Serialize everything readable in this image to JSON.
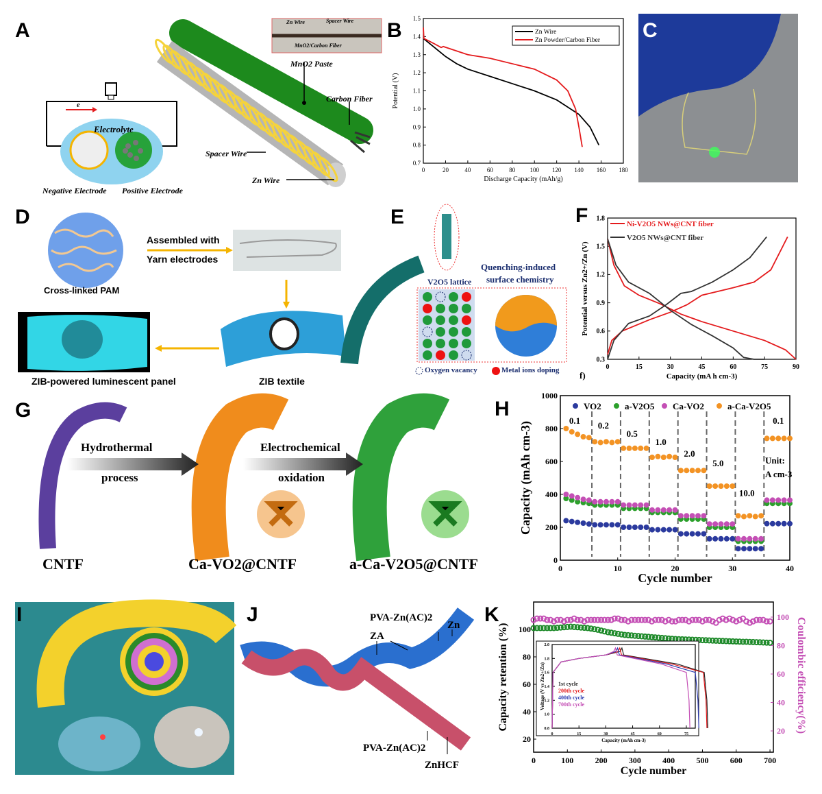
{
  "panels": {
    "A": "A",
    "B": "B",
    "C": "C",
    "D": "D",
    "E": "E",
    "F": "F",
    "G": "G",
    "H": "H",
    "I": "I",
    "J": "J",
    "K": "K"
  },
  "panelA": {
    "electrolyte": "Electrolyte",
    "electron": "e",
    "negative": "Negative Electrode",
    "positive": "Positive Electrode",
    "mno2": "MnO2 Paste",
    "carbon_fiber": "Carbon Fiber",
    "spacer_wire": "Spacer Wire",
    "zn_wire": "Zn Wire",
    "inset_zn": "Zn Wire",
    "inset_spacer": "Spacer Wire",
    "inset_mno2": "MnO2/Carbon Fiber"
  },
  "panelD": {
    "pam": "Cross-linked PAM",
    "assembled1": "Assembled with",
    "assembled2": "Yarn electrodes",
    "textile": "ZIB textile",
    "panel": "ZIB-powered luminescent panel"
  },
  "panelE": {
    "lattice": "V2O5 lattice",
    "quench1": "Quenching-induced",
    "quench2": "surface chemistry",
    "vacancy": "Oxygen vacancy",
    "doping": "Metal ions doping"
  },
  "panelG": {
    "step1a": "Hydrothermal",
    "step1b": "process",
    "step2a": "Electrochemical",
    "step2b": "oxidation",
    "cntf": "CNTF",
    "ca_vo2": "Ca-VO2@CNTF",
    "a_ca_v2o5": "a-Ca-V2O5@CNTF"
  },
  "panelJ": {
    "pva_top": "PVA-Zn(AC)2",
    "zn": "Zn",
    "za": "ZA",
    "pva_bottom": "PVA-Zn(AC)2",
    "znhcf": "ZnHCF"
  },
  "chart_data": [
    {
      "id": "B",
      "type": "line",
      "xlabel": "Discharge Capacity (mAh/g)",
      "ylabel": "Potential (V)",
      "xlim": [
        0,
        180
      ],
      "ylim": [
        0.7,
        1.5
      ],
      "xticks": [
        "0",
        "20",
        "40",
        "60",
        "80",
        "100",
        "120",
        "140",
        "160",
        "180"
      ],
      "yticks": [
        "0.7",
        "0.8",
        "0.9",
        "1.0",
        "1.1",
        "1.2",
        "1.3",
        "1.4",
        "1.5"
      ],
      "legend": "top-right",
      "series": [
        {
          "name": "Zn Wire",
          "color": "#000000",
          "points": [
            [
              0,
              1.39
            ],
            [
              10,
              1.34
            ],
            [
              20,
              1.29
            ],
            [
              30,
              1.25
            ],
            [
              40,
              1.22
            ],
            [
              60,
              1.18
            ],
            [
              80,
              1.14
            ],
            [
              100,
              1.1
            ],
            [
              120,
              1.05
            ],
            [
              140,
              0.97
            ],
            [
              150,
              0.9
            ],
            [
              158,
              0.8
            ]
          ]
        },
        {
          "name": "Zn Powder/Carbon Fiber",
          "color": "#e41a1c",
          "points": [
            [
              0,
              1.45
            ],
            [
              0.5,
              1.39
            ],
            [
              10,
              1.36
            ],
            [
              16,
              1.34
            ],
            [
              18,
              1.345
            ],
            [
              40,
              1.3
            ],
            [
              60,
              1.28
            ],
            [
              80,
              1.25
            ],
            [
              100,
              1.22
            ],
            [
              120,
              1.16
            ],
            [
              130,
              1.1
            ],
            [
              137,
              1.0
            ],
            [
              140,
              0.9
            ],
            [
              143,
              0.79
            ]
          ]
        }
      ]
    },
    {
      "id": "F",
      "type": "line",
      "xlabel": "Capacity (mA h cm-3)",
      "ylabel": "Potential versus Zn2+/Zn (V)",
      "xlim": [
        0,
        90
      ],
      "ylim": [
        0.3,
        1.8
      ],
      "sublabel": "f)",
      "xticks": [
        "0",
        "15",
        "30",
        "45",
        "60",
        "75",
        "90"
      ],
      "yticks": [
        "0.3",
        "0.6",
        "0.9",
        "1.2",
        "1.5",
        "1.8"
      ],
      "legend": "top-left",
      "series": [
        {
          "name": "Ni-V2O5 NWs@CNT fiber",
          "color": "#e41a1c",
          "points": [
            [
              0,
              0.35
            ],
            [
              2,
              0.5
            ],
            [
              7,
              0.6
            ],
            [
              20,
              0.72
            ],
            [
              30,
              0.8
            ],
            [
              38,
              0.88
            ],
            [
              45,
              0.98
            ],
            [
              60,
              1.06
            ],
            [
              70,
              1.12
            ],
            [
              78,
              1.25
            ],
            [
              86,
              1.6
            ]
          ],
          "discharge": [
            [
              0,
              1.58
            ],
            [
              3,
              1.3
            ],
            [
              8,
              1.08
            ],
            [
              15,
              0.98
            ],
            [
              25,
              0.89
            ],
            [
              35,
              0.78
            ],
            [
              45,
              0.7
            ],
            [
              60,
              0.6
            ],
            [
              75,
              0.5
            ],
            [
              85,
              0.4
            ],
            [
              90,
              0.3
            ]
          ]
        },
        {
          "name": "V2O5 NWs@CNT fiber",
          "color": "#333333",
          "points": [
            [
              0,
              0.3
            ],
            [
              3,
              0.5
            ],
            [
              10,
              0.68
            ],
            [
              20,
              0.76
            ],
            [
              28,
              0.88
            ],
            [
              35,
              1.0
            ],
            [
              40,
              1.02
            ],
            [
              50,
              1.12
            ],
            [
              60,
              1.25
            ],
            [
              68,
              1.38
            ],
            [
              76,
              1.6
            ]
          ],
          "discharge": [
            [
              0,
              1.58
            ],
            [
              4,
              1.3
            ],
            [
              10,
              1.12
            ],
            [
              20,
              1.0
            ],
            [
              30,
              0.82
            ],
            [
              40,
              0.67
            ],
            [
              50,
              0.55
            ],
            [
              60,
              0.42
            ],
            [
              65,
              0.32
            ],
            [
              70,
              0.3
            ],
            [
              75,
              0.3
            ]
          ]
        }
      ]
    },
    {
      "id": "H",
      "type": "scatter",
      "xlabel": "Cycle number",
      "ylabel": "Capacity (mAh cm-3)",
      "xlim": [
        0,
        40
      ],
      "ylim": [
        0,
        1000
      ],
      "xticks": [
        "0",
        "10",
        "20",
        "30",
        "40"
      ],
      "yticks": [
        "0",
        "200",
        "400",
        "600",
        "800",
        "1000"
      ],
      "legend": "top",
      "rates": [
        "0.1",
        "0.2",
        "0.5",
        "1.0",
        "2.0",
        "5.0",
        "10.0",
        "0.1"
      ],
      "unit1": "Unit:",
      "unit2": "A cm-3",
      "series": [
        {
          "name": "VO2",
          "color": "#2b3a9e",
          "values": [
            240,
            235,
            230,
            225,
            220,
            215,
            215,
            215,
            215,
            215,
            200,
            200,
            200,
            200,
            200,
            185,
            185,
            185,
            185,
            185,
            160,
            160,
            160,
            160,
            160,
            130,
            130,
            130,
            130,
            130,
            70,
            70,
            70,
            70,
            70,
            222,
            222,
            222,
            222,
            222
          ]
        },
        {
          "name": "a-V2O5",
          "color": "#2ca02c",
          "values": [
            375,
            365,
            355,
            350,
            345,
            335,
            335,
            335,
            335,
            335,
            315,
            315,
            315,
            315,
            315,
            290,
            290,
            290,
            290,
            290,
            250,
            250,
            250,
            250,
            250,
            200,
            200,
            200,
            200,
            200,
            115,
            115,
            115,
            115,
            115,
            345,
            345,
            345,
            345,
            345
          ]
        },
        {
          "name": "Ca-VO2",
          "color": "#c44fb5",
          "values": [
            400,
            390,
            380,
            370,
            365,
            355,
            355,
            355,
            355,
            355,
            335,
            335,
            335,
            335,
            335,
            305,
            305,
            305,
            305,
            305,
            270,
            270,
            270,
            270,
            270,
            220,
            220,
            220,
            220,
            220,
            130,
            130,
            130,
            130,
            130,
            365,
            365,
            365,
            365,
            365
          ]
        },
        {
          "name": "a-Ca-V2O5",
          "color": "#f39324",
          "values": [
            800,
            780,
            765,
            750,
            745,
            720,
            715,
            720,
            715,
            720,
            680,
            680,
            680,
            680,
            680,
            625,
            630,
            625,
            630,
            625,
            545,
            545,
            545,
            545,
            545,
            450,
            450,
            450,
            450,
            450,
            270,
            265,
            270,
            265,
            270,
            740,
            740,
            740,
            740,
            740
          ]
        }
      ]
    },
    {
      "id": "K",
      "type": "scatter",
      "xlabel": "Cycle number",
      "ylabel": "Capacity retention (%)",
      "y2label": "Coulombic efficiency(%)",
      "xlim": [
        0,
        700
      ],
      "ylim": [
        10,
        115
      ],
      "xticks": [
        "0",
        "100",
        "200",
        "300",
        "400",
        "500",
        "600",
        "700"
      ],
      "yticks": [
        "20",
        "40",
        "60",
        "80",
        "100"
      ],
      "y2ticks": [
        "20",
        "40",
        "60",
        "80",
        "100"
      ],
      "series": [
        {
          "name": "Capacity retention",
          "color": "#1e8a2a",
          "values": [
            100,
            100,
            100,
            100,
            100,
            100,
            100,
            100.2,
            100.4,
            100.6,
            100.8,
            101,
            100.8,
            100.6,
            100.4,
            100.2,
            100,
            99.6,
            99.2,
            98.8,
            98.2,
            97.6,
            97,
            96.6,
            96.2,
            95.8,
            95.4,
            95,
            94.8,
            94.6,
            94.4,
            94.2,
            94,
            93.8,
            93.6,
            93.4,
            93.2,
            93,
            92.8,
            92.6,
            92.4,
            92.2,
            92,
            91.9,
            91.8,
            91.7,
            91.6,
            91.5,
            91.4,
            91.3,
            91.2,
            91.1,
            91,
            90.9,
            90.8,
            90.7,
            90.6,
            90.5,
            90.4,
            90.3,
            90.2,
            90.1,
            90,
            90,
            89.9,
            89.8,
            89.7,
            89.6,
            89.5,
            89.4,
            89.3
          ]
        },
        {
          "name": "Coulombic efficiency",
          "color": "#c44fb5",
          "values": [
            98,
            99,
            99,
            99,
            98,
            98,
            97,
            98,
            98,
            97,
            98,
            98,
            99,
            98,
            98,
            97,
            98,
            98,
            98,
            98,
            98,
            98,
            98,
            98,
            99,
            99,
            98,
            98,
            97,
            98,
            98,
            98,
            98,
            98,
            98,
            97,
            98,
            98,
            98,
            97,
            98,
            97,
            97,
            98,
            98,
            98,
            97,
            98,
            98,
            98,
            97,
            98,
            98,
            97,
            96,
            98,
            99,
            98,
            99,
            98,
            97,
            98,
            99,
            97,
            96,
            97,
            98,
            98,
            98,
            97,
            97
          ]
        }
      ],
      "inset": {
        "xlabel": "Capacity (mAh cm-3)",
        "ylabel": "Voltage (V vs Zn2+/Zn)",
        "xlim": [
          0,
          80
        ],
        "ylim": [
          0.8,
          2.0
        ],
        "xticks": [
          "0",
          "15",
          "30",
          "45",
          "60",
          "75"
        ],
        "yticks": [
          "0.8",
          "1.0",
          "1.2",
          "1.4",
          "1.6",
          "1.8",
          "2.0"
        ],
        "series": [
          {
            "name": "1st cycle",
            "color": "#222222",
            "end": 88
          },
          {
            "name": "200th cycle",
            "color": "#e41a1c",
            "end": 87.5
          },
          {
            "name": "400th cycle",
            "color": "#2b3ab0",
            "end": 83
          },
          {
            "name": "700th cycle",
            "color": "#c44fb5",
            "end": 78
          }
        ]
      }
    }
  ]
}
